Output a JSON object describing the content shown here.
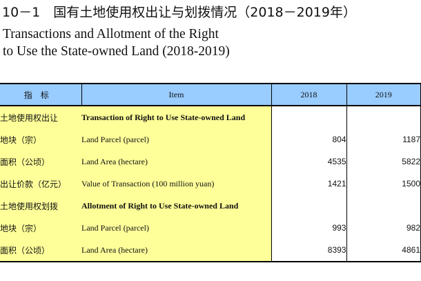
{
  "title": {
    "cn": "10－1　国有土地使用权出让与划拨情况（2018－2019年）",
    "en_line1": "Transactions and Allotment of the Right",
    "en_line2": "to Use the State-owned Land (2018-2019)"
  },
  "table": {
    "headers": {
      "indicator": "指标",
      "item": "Item",
      "y2018": "2018",
      "y2019": "2019"
    },
    "rows": [
      {
        "indicator": "土地使用权出让",
        "item": "Transaction of Right to Use State-owned Land",
        "v2018": "",
        "v2019": "",
        "is_section": true
      },
      {
        "indicator": "地块（宗）",
        "item": "Land Parcel (parcel)",
        "v2018": "804",
        "v2019": "1187",
        "is_section": false
      },
      {
        "indicator": "面积（公顷）",
        "item": "Land Area (hectare)",
        "v2018": "4535",
        "v2019": "5822",
        "is_section": false
      },
      {
        "indicator": "出让价款（亿元）",
        "item": "Value of Transaction (100 million yuan)",
        "v2018": "1421",
        "v2019": "1500",
        "is_section": false
      },
      {
        "indicator": "土地使用权划拨",
        "item": "Allotment of Right to Use State-owned Land",
        "v2018": "",
        "v2019": "",
        "is_section": true
      },
      {
        "indicator": "地块（宗）",
        "item": "Land Parcel (parcel)",
        "v2018": "993",
        "v2019": "982",
        "is_section": false
      },
      {
        "indicator": "面积（公顷）",
        "item": "Land Area (hectare)",
        "v2018": "8393",
        "v2019": "4861",
        "is_section": false
      }
    ]
  },
  "colors": {
    "header_bg": "#99ccff",
    "label_bg": "#ffff99",
    "border": "#000000"
  }
}
